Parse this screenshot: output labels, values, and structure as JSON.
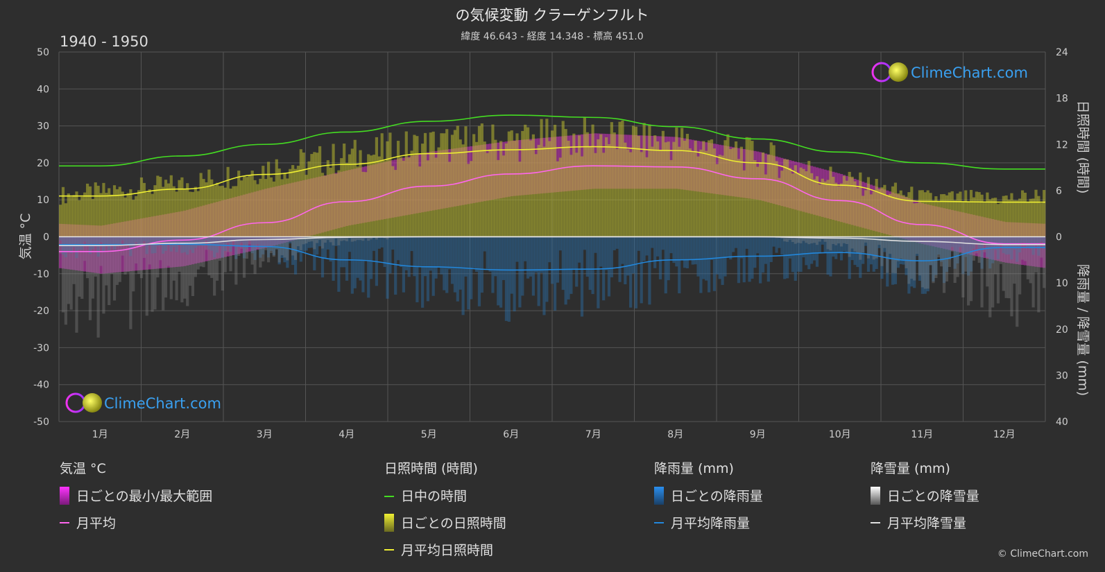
{
  "title": "の気候変動 クラーゲンフルト",
  "subtitle": "緯度 46.643 - 経度 14.348 - 標高 451.0",
  "period": "1940 - 1950",
  "copyright": "© ClimeChart.com",
  "watermark": "ClimeChart.com",
  "colors": {
    "background": "#2e2e2e",
    "daylight": "#44dd22",
    "sunshine_avg": "#eeee33",
    "sunshine_daily": "#b8b830",
    "temp_avg": "#ff66ee",
    "temp_range": "#dd33cc",
    "rain_avg": "#2288dd",
    "rain_daily": "#2a6fa8",
    "snow_avg": "#e0e0e0",
    "snow_daily": "#8a8a8a"
  },
  "chart_data": {
    "type": "line",
    "categories": [
      "1月",
      "2月",
      "3月",
      "4月",
      "5月",
      "6月",
      "7月",
      "8月",
      "9月",
      "10月",
      "11月",
      "12月"
    ],
    "axes": {
      "left": {
        "label": "気温 °C",
        "range": [
          -50,
          50
        ],
        "ticks": [
          "50",
          "40",
          "30",
          "20",
          "10",
          "0",
          "-10",
          "-20",
          "-30",
          "-40",
          "-50"
        ]
      },
      "right_top": {
        "label": "日照時間 (時間)",
        "range": [
          0,
          24
        ],
        "ticks": [
          "24",
          "18",
          "12",
          "6",
          "0"
        ]
      },
      "right_bottom": {
        "label": "降雨量 / 降雪量 (mm)",
        "range": [
          0,
          40
        ],
        "ticks": [
          "0",
          "10",
          "20",
          "30",
          "40"
        ]
      }
    },
    "series": [
      {
        "name": "日中の時間",
        "axis": "sunshine_hours",
        "values": [
          9.2,
          10.5,
          12.0,
          13.6,
          15.0,
          15.8,
          15.5,
          14.3,
          12.7,
          11.0,
          9.6,
          8.8
        ]
      },
      {
        "name": "月平均日照時間",
        "axis": "sunshine_hours",
        "values": [
          5.3,
          6.2,
          8.1,
          9.4,
          10.8,
          11.3,
          11.7,
          11.2,
          9.6,
          6.7,
          4.6,
          4.5
        ]
      },
      {
        "name": "月平均",
        "axis": "temperature_c",
        "values": [
          -4.0,
          -0.9,
          3.8,
          9.5,
          13.7,
          17.0,
          19.2,
          18.9,
          15.7,
          9.8,
          3.3,
          -1.9
        ]
      },
      {
        "name": "月平均降雨量",
        "axis": "precip_mm",
        "values": [
          1.7,
          1.6,
          2.1,
          5.0,
          6.5,
          7.2,
          7.0,
          5.0,
          4.2,
          3.4,
          5.2,
          2.3
        ]
      },
      {
        "name": "月平均降雪量",
        "axis": "precip_mm",
        "values": [
          1.9,
          1.4,
          0.6,
          0.1,
          0.0,
          0.0,
          0.0,
          0.0,
          0.0,
          0.3,
          1.0,
          1.7
        ]
      },
      {
        "name": "日ごとの最小/最大範囲",
        "axis": "temperature_c",
        "min": [
          -10,
          -8,
          -3,
          3,
          7,
          11,
          13,
          13,
          10,
          4,
          -2,
          -7
        ],
        "max": [
          3,
          7,
          13,
          18,
          23,
          26,
          28,
          27,
          23,
          17,
          9,
          4
        ]
      }
    ],
    "legend": [
      {
        "title": "気温 °C",
        "items": [
          {
            "label": "日ごとの最小/最大範囲",
            "swatch": "gradient-magenta"
          },
          {
            "label": "月平均",
            "swatch": "line-pink"
          }
        ]
      },
      {
        "title": "日照時間 (時間)",
        "items": [
          {
            "label": "日中の時間",
            "swatch": "line-green"
          },
          {
            "label": "日ごとの日照時間",
            "swatch": "gradient-yellow"
          },
          {
            "label": "月平均日照時間",
            "swatch": "line-yellow"
          }
        ]
      },
      {
        "title": "降雨量 (mm)",
        "items": [
          {
            "label": "日ごとの降雨量",
            "swatch": "gradient-blue"
          },
          {
            "label": "月平均降雨量",
            "swatch": "line-blue"
          }
        ]
      },
      {
        "title": "降雪量 (mm)",
        "items": [
          {
            "label": "日ごとの降雪量",
            "swatch": "gradient-white"
          },
          {
            "label": "月平均降雪量",
            "swatch": "line-white"
          }
        ]
      }
    ],
    "grid": true,
    "legend_position": "bottom"
  }
}
